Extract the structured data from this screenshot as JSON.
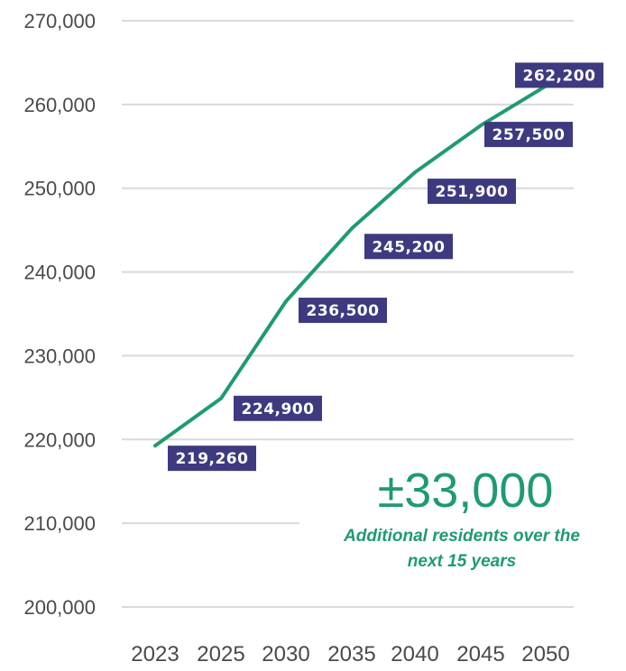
{
  "chart_data": {
    "type": "line",
    "x": [
      "2023",
      "2025",
      "2030",
      "2035",
      "2040",
      "2045",
      "2050"
    ],
    "series": [
      {
        "values": [
          219260,
          224900,
          236500,
          245200,
          251900,
          257500,
          262200
        ]
      }
    ],
    "data_labels": [
      "219,260",
      "224,900",
      "236,500",
      "245,200",
      "251,900",
      "257,500",
      "262,200"
    ],
    "y_ticks": [
      "200,000",
      "210,000",
      "220,000",
      "230,000",
      "240,000",
      "250,000",
      "260,000",
      "270,000"
    ],
    "ylim": [
      200000,
      270000
    ],
    "grid": true,
    "title": "",
    "xlabel": "",
    "ylabel": ""
  },
  "callout": {
    "value": "±33,000",
    "line1": "Additional residents over the",
    "line2": "next 15 years"
  },
  "colors": {
    "line": "#1f9b6e",
    "label_bg": "#3d3a80",
    "grid": "#d9d9d9",
    "callout": "#1f9b6e"
  }
}
